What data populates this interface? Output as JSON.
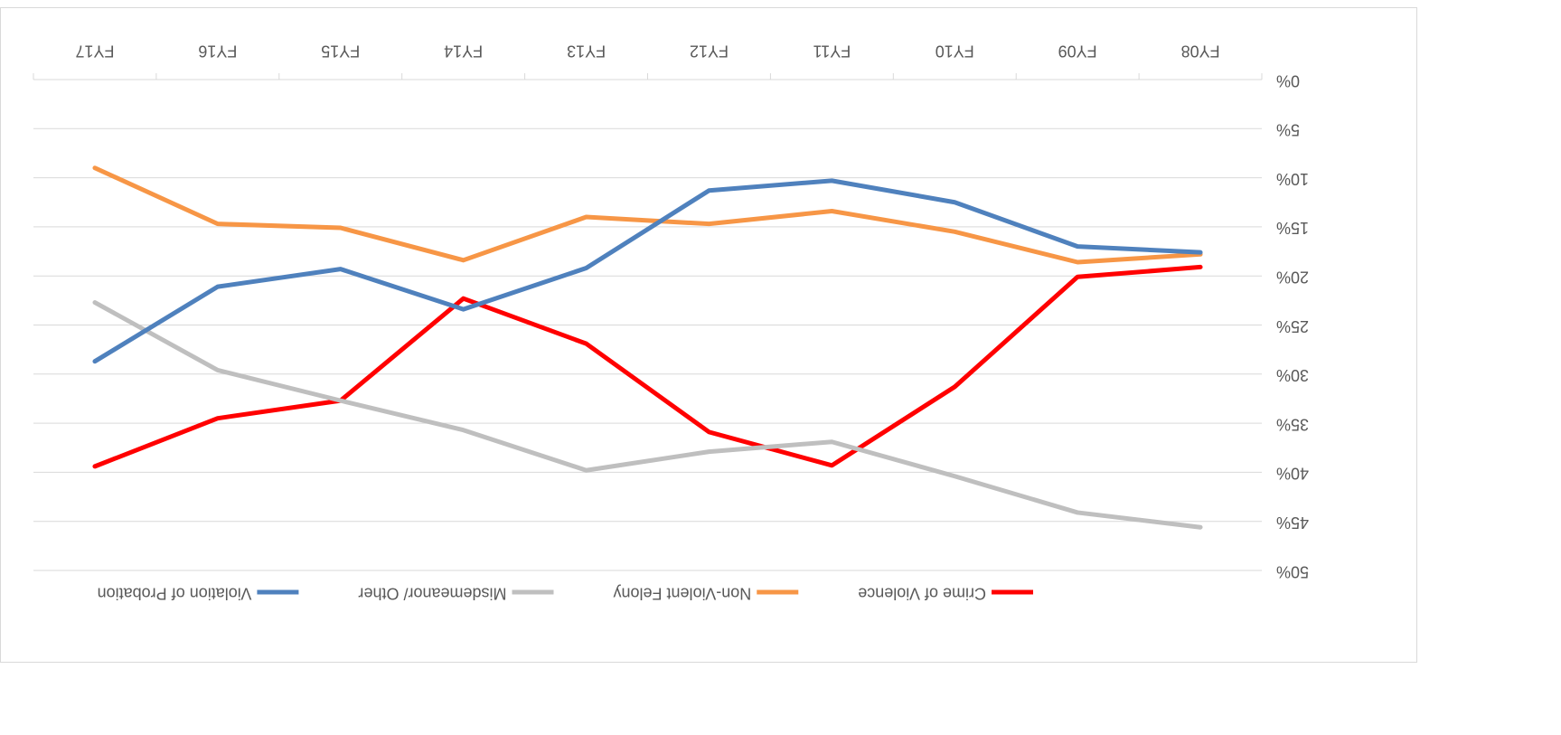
{
  "chart_data": {
    "type": "line",
    "categories": [
      "FY08",
      "FY09",
      "FY10",
      "FY11",
      "FY12",
      "FY13",
      "FY14",
      "FY15",
      "FY16",
      "FY17"
    ],
    "series": [
      {
        "name": "Crime of Violence",
        "color": "#ff0000",
        "values": [
          19.1,
          20.1,
          31.3,
          39.3,
          35.9,
          26.9,
          22.3,
          32.7,
          34.5,
          39.4
        ]
      },
      {
        "name": "Non-Violent Felony",
        "color": "#f79646",
        "values": [
          17.8,
          18.6,
          15.5,
          13.4,
          14.7,
          14.0,
          18.4,
          15.1,
          14.7,
          9.0
        ]
      },
      {
        "name": "Misdemeanor/ Other",
        "color": "#bfbfbf",
        "values": [
          45.6,
          44.1,
          40.4,
          36.9,
          37.9,
          39.8,
          35.7,
          32.7,
          29.6,
          22.7
        ]
      },
      {
        "name": "Violation of Probation",
        "color": "#4f81bd",
        "values": [
          17.6,
          17.0,
          12.5,
          10.3,
          11.3,
          19.2,
          23.4,
          19.3,
          21.1,
          28.7
        ]
      }
    ],
    "ylim": [
      0,
      50
    ],
    "yticks": [
      {
        "value": 0,
        "label": "0%"
      },
      {
        "value": 5,
        "label": "5%"
      },
      {
        "value": 10,
        "label": "10%"
      },
      {
        "value": 15,
        "label": "15%"
      },
      {
        "value": 20,
        "label": "20%"
      },
      {
        "value": 25,
        "label": "25%"
      },
      {
        "value": 30,
        "label": "30%"
      },
      {
        "value": 35,
        "label": "35%"
      },
      {
        "value": 40,
        "label": "40%"
      },
      {
        "value": 45,
        "label": "45%"
      },
      {
        "value": 50,
        "label": "50%"
      }
    ],
    "grid": true,
    "legend": "top",
    "rotation": 180
  }
}
